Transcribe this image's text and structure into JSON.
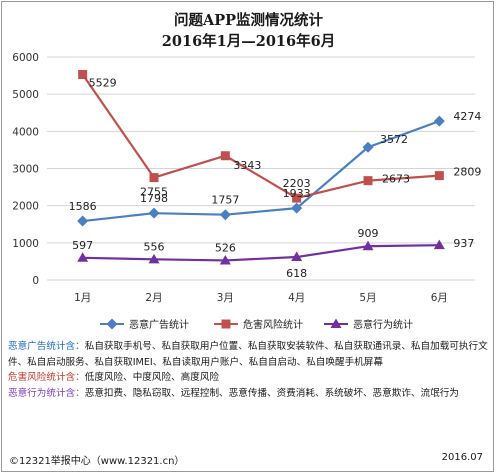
{
  "chart_data": {
    "type": "line",
    "title": "问题APP监测情况统计",
    "subtitle": "2016年1月—2016年6月",
    "categories": [
      "1月",
      "2月",
      "3月",
      "4月",
      "5月",
      "6月"
    ],
    "ylim": [
      0,
      6000
    ],
    "yticks": [
      0,
      1000,
      2000,
      3000,
      4000,
      5000,
      6000
    ],
    "grid": true,
    "legend_position": "bottom",
    "series": [
      {
        "name": "恶意广告统计",
        "values": [
          1586,
          1798,
          1757,
          1933,
          3572,
          4274
        ],
        "color": "#4a7fc1",
        "marker": "diamond"
      },
      {
        "name": "危害风险统计",
        "values": [
          5529,
          2755,
          3343,
          2203,
          2673,
          2809
        ],
        "color": "#c0504d",
        "marker": "square"
      },
      {
        "name": "恶意行为统计",
        "values": [
          597,
          556,
          526,
          618,
          909,
          937
        ],
        "color": "#7030a0",
        "marker": "triangle"
      }
    ]
  },
  "notes": {
    "ad_label": "恶意广告统计含：",
    "ad_text": "私自获取手机号、私自获取用户位置、私自获取安装软件、私自获取通讯录、私自加载可执行文件、私自启动服务、私自获取IMEI、私自读取用户账户、私自自启动、私自唤醒手机屏幕",
    "risk_label": "危害风险统计含：",
    "risk_text": "低度风险、中度风险、高度风险",
    "behavior_label": "恶意行为统计含：",
    "behavior_text": "恶意扣费、隐私窃取、远程控制、恶意传播、资费消耗、系统破坏、恶意欺诈、流氓行为"
  },
  "footer": {
    "source": "©12321举报中心（www.12321.cn）",
    "date": "2016.07"
  }
}
